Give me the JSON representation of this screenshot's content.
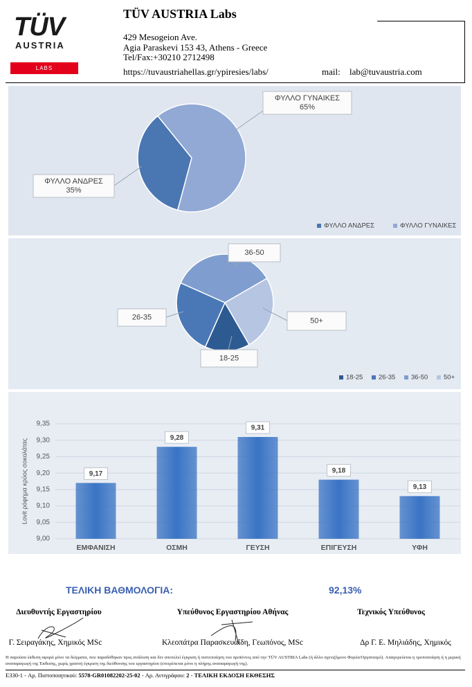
{
  "header": {
    "logo": {
      "brand": "TÜV",
      "sub": "AUSTRIA",
      "tag": "LABS"
    },
    "title": "TÜV AUSTRIA Labs",
    "address": [
      "429 Mesogeion Ave.",
      "Agia Paraskevi 153 43, Athens - Greece",
      "Tel/Fax:+30210 2712498"
    ],
    "url": "https://tuvaustriahellas.gr/ypiresies/labs/",
    "mail_label": "mail:",
    "mail": "lab@tuvaustria.com"
  },
  "chart_data": [
    {
      "type": "pie",
      "categories": [
        "ΦΥΛΛΟ ΑΝΔΡΕΣ",
        "ΦΥΛΛΟ ΓΥΝΑΙΚΕΣ"
      ],
      "values": [
        35,
        65
      ],
      "value_labels": [
        "35%",
        "65%"
      ],
      "colors": [
        "#4a76b2",
        "#91a9d4"
      ],
      "legend": "bottom-right"
    },
    {
      "type": "pie",
      "categories": [
        "18-25",
        "26-35",
        "36-50",
        "50+"
      ],
      "values": [
        15,
        25,
        35,
        25
      ],
      "colors": [
        "#2e5a92",
        "#4a78b6",
        "#7f9ecf",
        "#b5c5e2"
      ],
      "legend": "bottom-right"
    },
    {
      "type": "bar",
      "y_label": "Lovit ρόφημα κρύος σοκολάτας",
      "categories": [
        "ΕΜΦΑΝΙΣΗ",
        "ΟΣΜΗ",
        "ΓΕΥΣΗ",
        "ΕΠΙΓΕΥΣΗ",
        "ΥΦΗ"
      ],
      "values": [
        9.17,
        9.28,
        9.31,
        9.18,
        9.13
      ],
      "value_labels": [
        "9,17",
        "9,28",
        "9,31",
        "9,18",
        "9,13"
      ],
      "color": "#3a74c4",
      "ylim": [
        9.0,
        9.35
      ],
      "yticks": [
        {
          "value": 9.0,
          "label": "9,00"
        },
        {
          "value": 9.05,
          "label": "9,05"
        },
        {
          "value": 9.1,
          "label": "9,10"
        },
        {
          "value": 9.15,
          "label": "9,15"
        },
        {
          "value": 9.2,
          "label": "9,20"
        },
        {
          "value": 9.25,
          "label": "9,25"
        },
        {
          "value": 9.3,
          "label": "9,30"
        },
        {
          "value": 9.35,
          "label": "9,35"
        }
      ],
      "grid": true
    }
  ],
  "summary": {
    "label": "ΤΕΛΙΚΗ ΒΑΘΜΟΛΟΓΙΑ:",
    "value": "92,13%"
  },
  "signatures": [
    {
      "role": "Διευθυντής Εργαστηρίου",
      "name": "Γ. Σειραγάκης, Χημικός MSc"
    },
    {
      "role": "Υπεύθυνος Εργαστηρίου Αθήνας",
      "name": "Κλεοπάτρα Παρασκευαΐδη, Γεωπόνος, MSc"
    },
    {
      "role": "Τεχνικός Υπεύθυνος",
      "name": "Δρ Γ. Ε. Μηλιάδης, Χημικός"
    }
  ],
  "footer": {
    "disclaimer": "Η παρούσα έκθεση αφορά μόνο τα δείγματα, που παραδόθηκαν προς ανάλυση και δεν αποτελεί έγκριση ή πιστοποίηση του προϊόντος από την TÜV AUSTRIA Labs (ή άλλο σχετιζόμενο Φορέα/Οργανισμό). Απαγορεύεται η τροποποίηση ή η μερική αναπαραγωγή της Έκθεσης, χωρίς γραπτή έγκριση της διεύθυνσης του εργαστηρίου (επιτρέπεται μόνο η πλήρης αναπαραγωγή της).",
    "code": [
      "E330-1  -  Αρ. Πιστοποιητικού: ",
      "5578-GR01082202-25-02",
      " -  Αρ. Αντιγράφου: ",
      "2",
      " -  ",
      "ΤΕΛΙΚΗ ΕΚΔΟΣΗ ΕΚΘΕΣΗΣ"
    ]
  }
}
